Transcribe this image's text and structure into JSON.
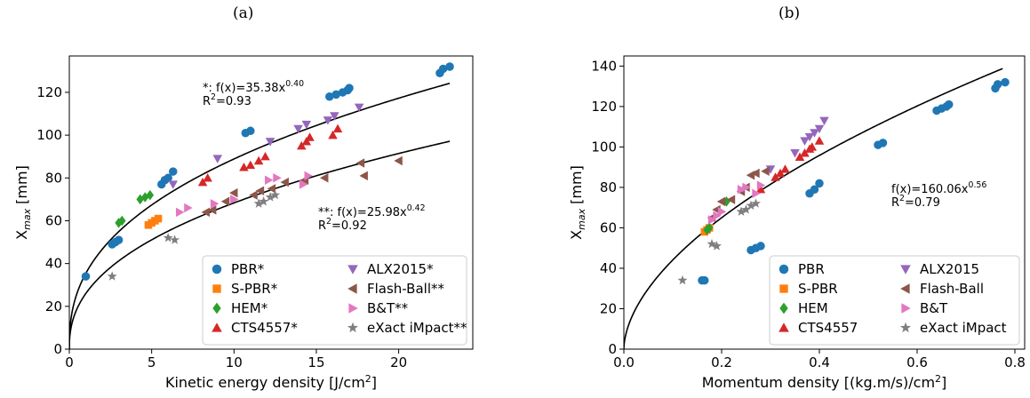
{
  "panels": {
    "a_label": "(a)",
    "b_label": "(b)"
  },
  "chart_data": [
    {
      "type": "scatter",
      "panel": "(a)",
      "xlabel": "Kinetic energy density [J/cm²]",
      "ylabel": "X_max [mm]",
      "xlim": [
        0,
        24.5
      ],
      "ylim": [
        0,
        137
      ],
      "xticks": [
        0,
        5,
        10,
        15,
        20
      ],
      "yticks": [
        0,
        20,
        40,
        60,
        80,
        100,
        120
      ],
      "grid": false,
      "legend_placement": "bottom-right",
      "series": [
        {
          "name": "PBR*",
          "color": "#1f77b4",
          "marker": "circle",
          "x": [
            1.0,
            2.6,
            2.8,
            3.0,
            5.6,
            5.8,
            6.0,
            6.3,
            10.7,
            11.0,
            15.8,
            16.2,
            16.6,
            16.9,
            17.0,
            22.5,
            22.7,
            23.1
          ],
          "y": [
            34,
            49,
            50,
            51,
            77,
            79,
            80,
            83,
            101,
            102,
            118,
            119,
            120,
            121,
            122,
            129,
            131,
            132
          ]
        },
        {
          "name": "S-PBR*",
          "color": "#ff7f0e",
          "marker": "square",
          "x": [
            4.8,
            5.0,
            5.2,
            5.4
          ],
          "y": [
            58,
            59,
            60,
            61
          ]
        },
        {
          "name": "HEM*",
          "color": "#2ca02c",
          "marker": "diamond",
          "x": [
            3.0,
            3.2,
            4.3,
            4.6,
            4.9
          ],
          "y": [
            59,
            60,
            70,
            71,
            72
          ]
        },
        {
          "name": "CTS4557*",
          "color": "#d62728",
          "marker": "triangle-up",
          "x": [
            8.1,
            8.4,
            10.6,
            11.0,
            11.5,
            11.9,
            14.1,
            14.4,
            14.6,
            16.0,
            16.3
          ],
          "y": [
            78,
            80,
            85,
            86,
            88,
            90,
            95,
            97,
            99,
            100,
            103
          ]
        },
        {
          "name": "ALX2015*",
          "color": "#9467bd",
          "marker": "triangle-down",
          "x": [
            6.3,
            9.0,
            12.2,
            13.9,
            14.4,
            15.7,
            16.1,
            17.6
          ],
          "y": [
            77,
            89,
            97,
            103,
            105,
            107,
            109,
            113
          ]
        },
        {
          "name": "Flash-Ball**",
          "color": "#8c564b",
          "marker": "triangle-left",
          "x": [
            8.3,
            8.7,
            9.5,
            10.0,
            11.2,
            11.6,
            12.3,
            13.1,
            14.3,
            15.5,
            17.7,
            17.9,
            20.0
          ],
          "y": [
            64,
            65,
            69,
            73,
            72,
            74,
            75,
            78,
            79,
            80,
            87,
            81,
            88
          ]
        },
        {
          "name": "B&T**",
          "color": "#e377c2",
          "marker": "triangle-right",
          "x": [
            6.7,
            7.2,
            8.8,
            10.0,
            12.1,
            12.6,
            14.2,
            14.5
          ],
          "y": [
            64,
            66,
            68,
            70,
            79,
            80,
            77,
            81
          ]
        },
        {
          "name": "eXact iMpact**",
          "color": "#7f7f7f",
          "marker": "star",
          "x": [
            2.6,
            6.0,
            6.4,
            11.5,
            11.8,
            12.2,
            12.5
          ],
          "y": [
            34,
            52,
            51,
            68,
            69,
            71,
            72
          ]
        }
      ],
      "fits": [
        {
          "label": "*: f(x)=35.38x^0.40",
          "r2": "R²=0.93",
          "a": 35.38,
          "b": 0.4,
          "xmax": 23.1
        },
        {
          "label": "**: f(x)=25.98x^0.42",
          "r2": "R²=0.92",
          "a": 25.98,
          "b": 0.42,
          "xmax": 23.1
        }
      ]
    },
    {
      "type": "scatter",
      "panel": "(b)",
      "xlabel": "Momentum density [(kg.m/s)/cm²]",
      "ylabel": "X_max [mm]",
      "xlim": [
        0,
        0.82
      ],
      "ylim": [
        0,
        145
      ],
      "xticks": [
        0.0,
        0.2,
        0.4,
        0.6,
        0.8
      ],
      "yticks": [
        0,
        20,
        40,
        60,
        80,
        100,
        120,
        140
      ],
      "grid": false,
      "legend_placement": "bottom-right",
      "series": [
        {
          "name": "PBR",
          "color": "#1f77b4",
          "marker": "circle",
          "x": [
            0.16,
            0.165,
            0.26,
            0.27,
            0.28,
            0.38,
            0.39,
            0.4,
            0.52,
            0.53,
            0.64,
            0.65,
            0.66,
            0.665,
            0.76,
            0.765,
            0.78
          ],
          "y": [
            34,
            34,
            49,
            50,
            51,
            77,
            79,
            82,
            101,
            102,
            118,
            119,
            120,
            121,
            129,
            131,
            132
          ]
        },
        {
          "name": "S-PBR",
          "color": "#ff7f0e",
          "marker": "square",
          "x": [
            0.165,
            0.17,
            0.175
          ],
          "y": [
            58,
            59,
            60
          ]
        },
        {
          "name": "HEM",
          "color": "#2ca02c",
          "marker": "diamond",
          "x": [
            0.17,
            0.175,
            0.21
          ],
          "y": [
            59,
            60,
            73
          ]
        },
        {
          "name": "CTS4557",
          "color": "#d62728",
          "marker": "triangle-up",
          "x": [
            0.28,
            0.31,
            0.32,
            0.33,
            0.36,
            0.37,
            0.38,
            0.385,
            0.4
          ],
          "y": [
            79,
            85,
            87,
            89,
            95,
            97,
            99,
            100,
            103
          ]
        },
        {
          "name": "ALX2015",
          "color": "#9467bd",
          "marker": "triangle-down",
          "x": [
            0.3,
            0.35,
            0.37,
            0.38,
            0.39,
            0.4,
            0.41
          ],
          "y": [
            89,
            97,
            103,
            105,
            107,
            109,
            113
          ]
        },
        {
          "name": "Flash-Ball",
          "color": "#8c564b",
          "marker": "triangle-left",
          "x": [
            0.18,
            0.19,
            0.2,
            0.22,
            0.24,
            0.25,
            0.26,
            0.27,
            0.29
          ],
          "y": [
            65,
            69,
            73,
            74,
            78,
            80,
            86,
            87,
            88
          ]
        },
        {
          "name": "B&T",
          "color": "#e377c2",
          "marker": "triangle-right",
          "x": [
            0.18,
            0.19,
            0.2,
            0.24,
            0.25,
            0.27,
            0.28
          ],
          "y": [
            64,
            66,
            68,
            79,
            80,
            77,
            81
          ]
        },
        {
          "name": "eXact iMpact",
          "color": "#7f7f7f",
          "marker": "star",
          "x": [
            0.12,
            0.18,
            0.19,
            0.24,
            0.25,
            0.26,
            0.27
          ],
          "y": [
            34,
            52,
            51,
            68,
            69,
            71,
            72
          ]
        }
      ],
      "fits": [
        {
          "label": "f(x)=160.06x^0.56",
          "r2": "R²=0.79",
          "a": 160.06,
          "b": 0.56,
          "xmax": 0.775
        }
      ]
    }
  ]
}
